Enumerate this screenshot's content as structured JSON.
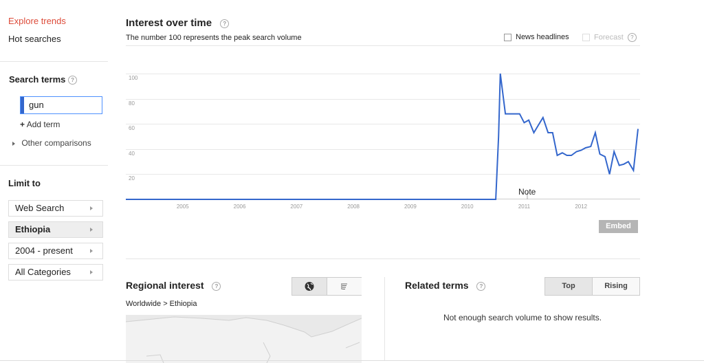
{
  "sidebar": {
    "explore_trends": "Explore trends",
    "hot_searches": "Hot searches",
    "search_terms_label": "Search terms",
    "search_value": "gun",
    "add_term": "Add term",
    "other_comparisons": "Other comparisons",
    "limit_to": "Limit to",
    "filters": [
      "Web Search",
      "Ethiopia",
      "2004 - present",
      "All Categories"
    ]
  },
  "interest": {
    "title": "Interest over time",
    "subtitle": "The number 100 represents the peak search volume",
    "news_headlines": "News headlines",
    "forecast": "Forecast",
    "note": "Note",
    "embed": "Embed",
    "help": "?"
  },
  "chart_data": {
    "type": "line",
    "series": [
      {
        "color": "#3366cc",
        "points": [
          [
            2004.0,
            0
          ],
          [
            2010.5,
            0
          ],
          [
            2010.55,
            50
          ],
          [
            2010.58,
            100
          ],
          [
            2010.67,
            68
          ],
          [
            2010.75,
            68
          ],
          [
            2010.83,
            68
          ],
          [
            2010.92,
            68
          ],
          [
            2011.0,
            61
          ],
          [
            2011.08,
            63
          ],
          [
            2011.17,
            53
          ],
          [
            2011.25,
            59
          ],
          [
            2011.33,
            65
          ],
          [
            2011.42,
            53
          ],
          [
            2011.5,
            53
          ],
          [
            2011.58,
            35
          ],
          [
            2011.67,
            37
          ],
          [
            2011.75,
            35
          ],
          [
            2011.83,
            35
          ],
          [
            2011.92,
            38
          ],
          [
            2012.0,
            39
          ],
          [
            2012.08,
            41
          ],
          [
            2012.17,
            42
          ],
          [
            2012.25,
            53
          ],
          [
            2012.33,
            36
          ],
          [
            2012.42,
            34
          ],
          [
            2012.5,
            20
          ],
          [
            2012.58,
            38
          ],
          [
            2012.67,
            27
          ],
          [
            2012.75,
            28
          ],
          [
            2012.83,
            30
          ],
          [
            2012.92,
            23
          ],
          [
            2013.0,
            56
          ]
        ]
      }
    ],
    "x_ticks": [
      "2005",
      "2006",
      "2007",
      "2008",
      "2009",
      "2010",
      "2011",
      "2012"
    ],
    "y_ticks": [
      "100",
      "80",
      "60",
      "40",
      "20"
    ],
    "xlim": [
      2004.0,
      2013.0
    ],
    "ylim": [
      0,
      100
    ],
    "grid": true
  },
  "regional": {
    "title": "Regional interest",
    "breadcrumb": "Worldwide > Ethiopia",
    "help": "?"
  },
  "related": {
    "title": "Related terms",
    "tab_top": "Top",
    "tab_rising": "Rising",
    "message": "Not enough search volume to show results.",
    "help": "?"
  }
}
